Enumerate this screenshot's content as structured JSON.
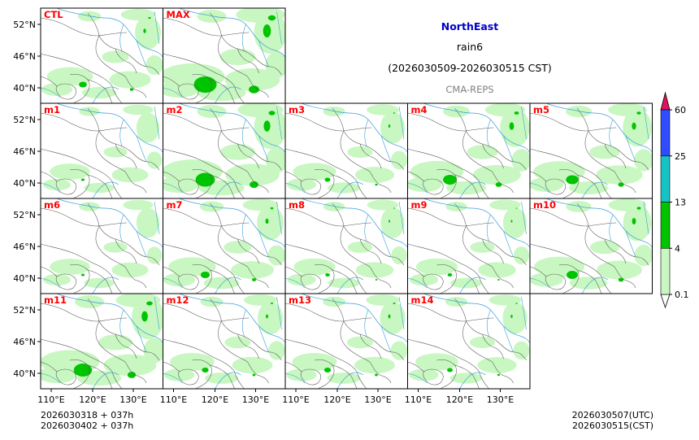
{
  "title": {
    "region": "NorthEast",
    "variable": "rain6",
    "period": "(2026030509-2026030515 CST)",
    "model": "CMA-REPS"
  },
  "colors": {
    "region_title": "#0000cc",
    "model_title": "#808080",
    "panel_label": "#ff0000",
    "river": "#3b9fd8",
    "border": "#555555"
  },
  "panels": [
    {
      "label": "CTL",
      "intensity": 0.35
    },
    {
      "label": "MAX",
      "intensity": 1.0
    },
    {
      "label": "m1",
      "intensity": 0.15
    },
    {
      "label": "m2",
      "intensity": 0.85
    },
    {
      "label": "m3",
      "intensity": 0.25
    },
    {
      "label": "m4",
      "intensity": 0.6
    },
    {
      "label": "m5",
      "intensity": 0.55
    },
    {
      "label": "m6",
      "intensity": 0.15
    },
    {
      "label": "m7",
      "intensity": 0.4
    },
    {
      "label": "m8",
      "intensity": 0.2
    },
    {
      "label": "m9",
      "intensity": 0.2
    },
    {
      "label": "m10",
      "intensity": 0.5
    },
    {
      "label": "m11",
      "intensity": 0.8
    },
    {
      "label": "m12",
      "intensity": 0.3
    },
    {
      "label": "m13",
      "intensity": 0.3
    },
    {
      "label": "m14",
      "intensity": 0.25
    }
  ],
  "lat_ticks": [
    "52°N",
    "46°N",
    "40°N"
  ],
  "lon_ticks": [
    "110°E",
    "120°E",
    "130°E"
  ],
  "colorbar": {
    "levels": [
      "0.1",
      "4",
      "13",
      "25",
      "60"
    ],
    "colors": [
      "#c8f7c1",
      "#00c400",
      "#14c4c4",
      "#2f4dff"
    ],
    "extend_max_color": "#e0145c",
    "extend_min_color": "#ffffff"
  },
  "init_info": {
    "line1": "2026030318  +  037h",
    "line2": "2026030402  +  037h"
  },
  "valid_info": {
    "line1": "2026030507(UTC)",
    "line2": "2026030515(CST)"
  }
}
